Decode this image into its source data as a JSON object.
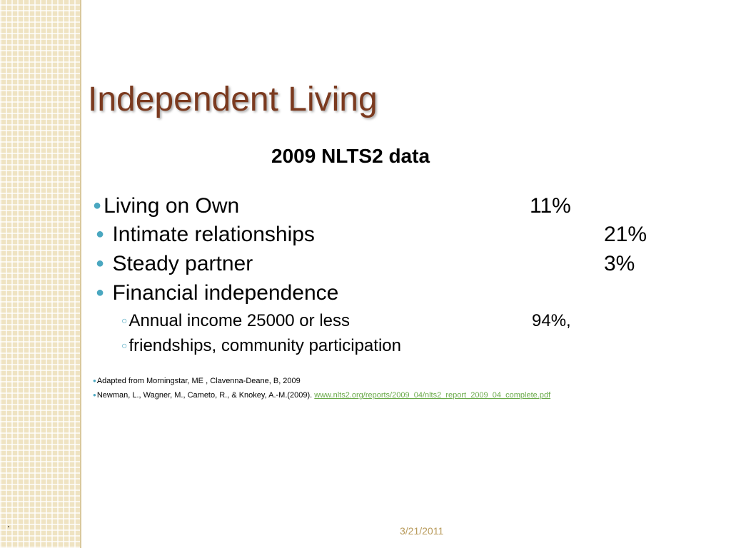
{
  "slide": {
    "title": "Independent Living",
    "subtitle": "2009 NLTS2 data",
    "bullets": [
      {
        "label": "Living on Own",
        "value": "11%"
      },
      {
        "label": "Intimate relationships",
        "value": "21%"
      },
      {
        "label": "Steady partner",
        "value": "3%"
      },
      {
        "label": "Financial independence"
      }
    ],
    "sub_bullets": [
      {
        "label": "Annual income 25000 or less",
        "value": "94%,"
      },
      {
        "label": "friendships, community participation"
      }
    ],
    "references": [
      {
        "text": "Adapted from Morningstar, ME , Clavenna-Deane, B, 2009"
      },
      {
        "text": "Newman, L., Wagner, M., Cameto, R., & Knokey, A.-M.(2009).",
        "link": "www.nlts2.org/reports/2009_04/nlts2_report_2009_04_complete.pdf"
      }
    ],
    "footer": {
      "mark": ".",
      "date": "3/21/2011"
    }
  }
}
